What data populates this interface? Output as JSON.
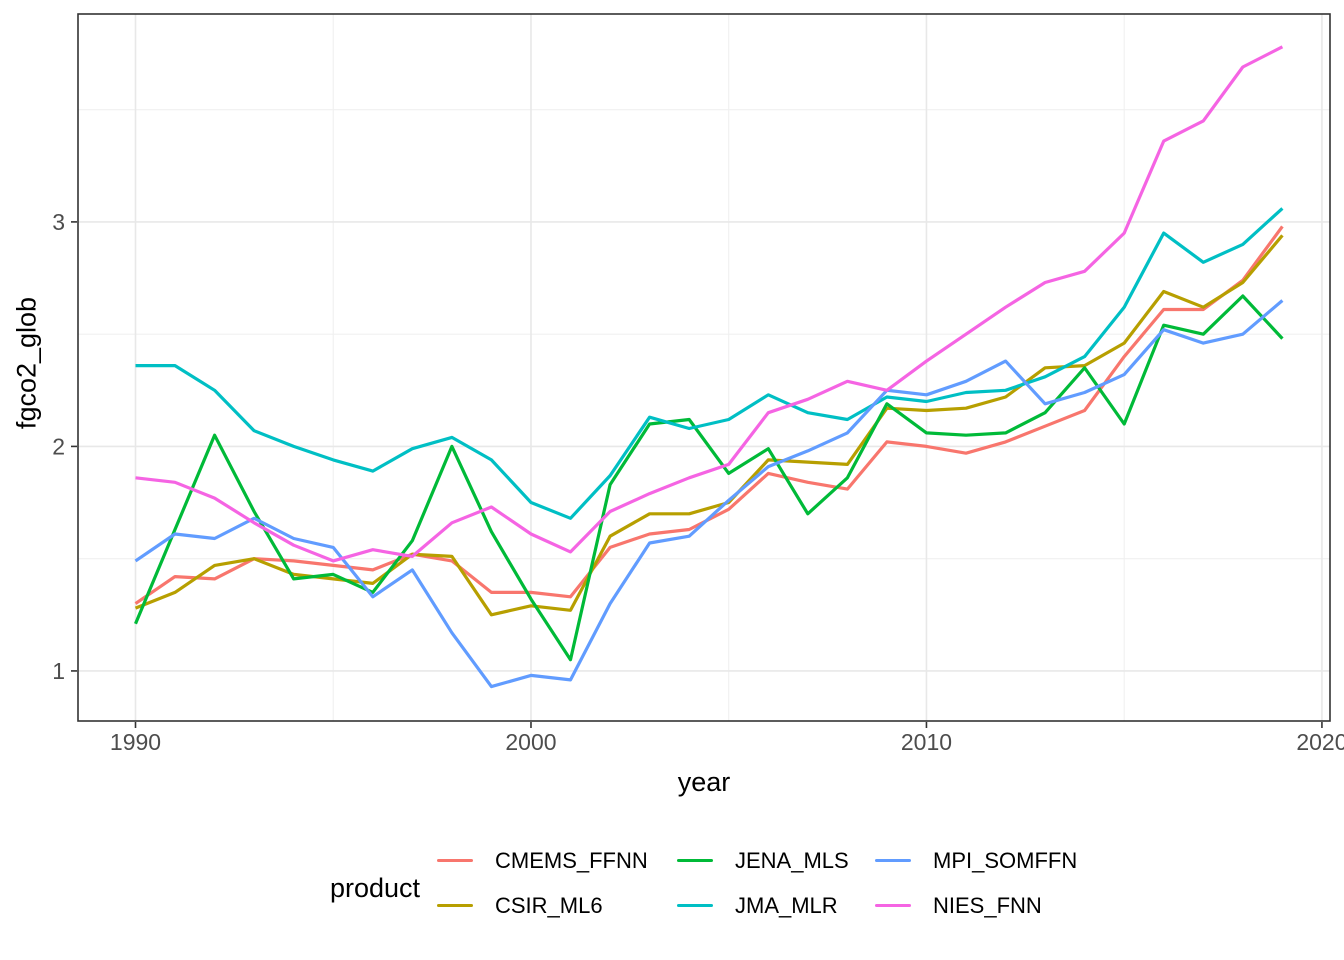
{
  "chart_data": {
    "type": "line",
    "title": "",
    "xlabel": "year",
    "ylabel": "fgco2_glob",
    "xlim": [
      1988.546,
      2020.204
    ],
    "ylim": [
      0.777,
      3.926
    ],
    "grid": "on",
    "legend": {
      "title": "product",
      "position": "bottom"
    },
    "x_ticks": [
      {
        "value": 1990,
        "label": "1990"
      },
      {
        "value": 2000,
        "label": "2000"
      },
      {
        "value": 2010,
        "label": "2010"
      },
      {
        "value": 2020,
        "label": "2020"
      }
    ],
    "y_ticks": [
      {
        "value": 1,
        "label": "1"
      },
      {
        "value": 2,
        "label": "2"
      },
      {
        "value": 3,
        "label": "3"
      }
    ],
    "x_minor": [
      1995,
      2005,
      2015
    ],
    "y_minor": [
      1.5,
      2.5,
      3.5
    ],
    "x": [
      1990,
      1991,
      1992,
      1993,
      1994,
      1995,
      1996,
      1997,
      1998,
      1999,
      2000,
      2001,
      2002,
      2003,
      2004,
      2005,
      2006,
      2007,
      2008,
      2009,
      2010,
      2011,
      2012,
      2013,
      2014,
      2015,
      2016,
      2017,
      2018,
      2019
    ],
    "series": [
      {
        "name": "CMEMS_FFNN",
        "color": "#F8766D",
        "values": [
          1.3,
          1.42,
          1.41,
          1.5,
          1.49,
          1.47,
          1.45,
          1.52,
          1.49,
          1.35,
          1.35,
          1.33,
          1.55,
          1.61,
          1.63,
          1.72,
          1.88,
          1.84,
          1.81,
          2.02,
          2.0,
          1.97,
          2.02,
          2.09,
          2.16,
          2.4,
          2.61,
          2.61,
          2.74,
          2.98
        ]
      },
      {
        "name": "CSIR_ML6",
        "color": "#B79F00",
        "values": [
          1.28,
          1.35,
          1.47,
          1.5,
          1.43,
          1.41,
          1.39,
          1.52,
          1.51,
          1.25,
          1.29,
          1.27,
          1.6,
          1.7,
          1.7,
          1.75,
          1.94,
          1.93,
          1.92,
          2.17,
          2.16,
          2.17,
          2.22,
          2.35,
          2.36,
          2.46,
          2.69,
          2.62,
          2.73,
          2.94
        ]
      },
      {
        "name": "JENA_MLS",
        "color": "#00BA38",
        "values": [
          1.21,
          1.63,
          2.05,
          1.71,
          1.41,
          1.43,
          1.35,
          1.58,
          2.0,
          1.62,
          1.32,
          1.05,
          1.83,
          2.1,
          2.12,
          1.88,
          1.99,
          1.7,
          1.86,
          2.19,
          2.06,
          2.05,
          2.06,
          2.15,
          2.35,
          2.1,
          2.54,
          2.5,
          2.67,
          2.48
        ]
      },
      {
        "name": "JMA_MLR",
        "color": "#00BFC4",
        "values": [
          2.36,
          2.36,
          2.25,
          2.07,
          2.0,
          1.94,
          1.89,
          1.99,
          2.04,
          1.94,
          1.75,
          1.68,
          1.87,
          2.13,
          2.08,
          2.12,
          2.23,
          2.15,
          2.12,
          2.22,
          2.2,
          2.24,
          2.25,
          2.31,
          2.4,
          2.62,
          2.95,
          2.82,
          2.9,
          3.06
        ]
      },
      {
        "name": "MPI_SOMFFN",
        "color": "#619CFF",
        "values": [
          1.49,
          1.61,
          1.59,
          1.68,
          1.59,
          1.55,
          1.33,
          1.45,
          1.17,
          0.93,
          0.98,
          0.96,
          1.3,
          1.57,
          1.6,
          1.76,
          1.91,
          1.98,
          2.06,
          2.25,
          2.23,
          2.29,
          2.38,
          2.19,
          2.24,
          2.32,
          2.52,
          2.46,
          2.5,
          2.65
        ]
      },
      {
        "name": "NIES_FNN",
        "color": "#F564E3",
        "values": [
          1.86,
          1.84,
          1.77,
          1.66,
          1.56,
          1.49,
          1.54,
          1.51,
          1.66,
          1.73,
          1.61,
          1.53,
          1.71,
          1.79,
          1.86,
          1.92,
          2.15,
          2.21,
          2.29,
          2.25,
          2.38,
          2.5,
          2.62,
          2.73,
          2.78,
          2.95,
          3.36,
          3.45,
          3.69,
          3.78
        ]
      }
    ]
  }
}
